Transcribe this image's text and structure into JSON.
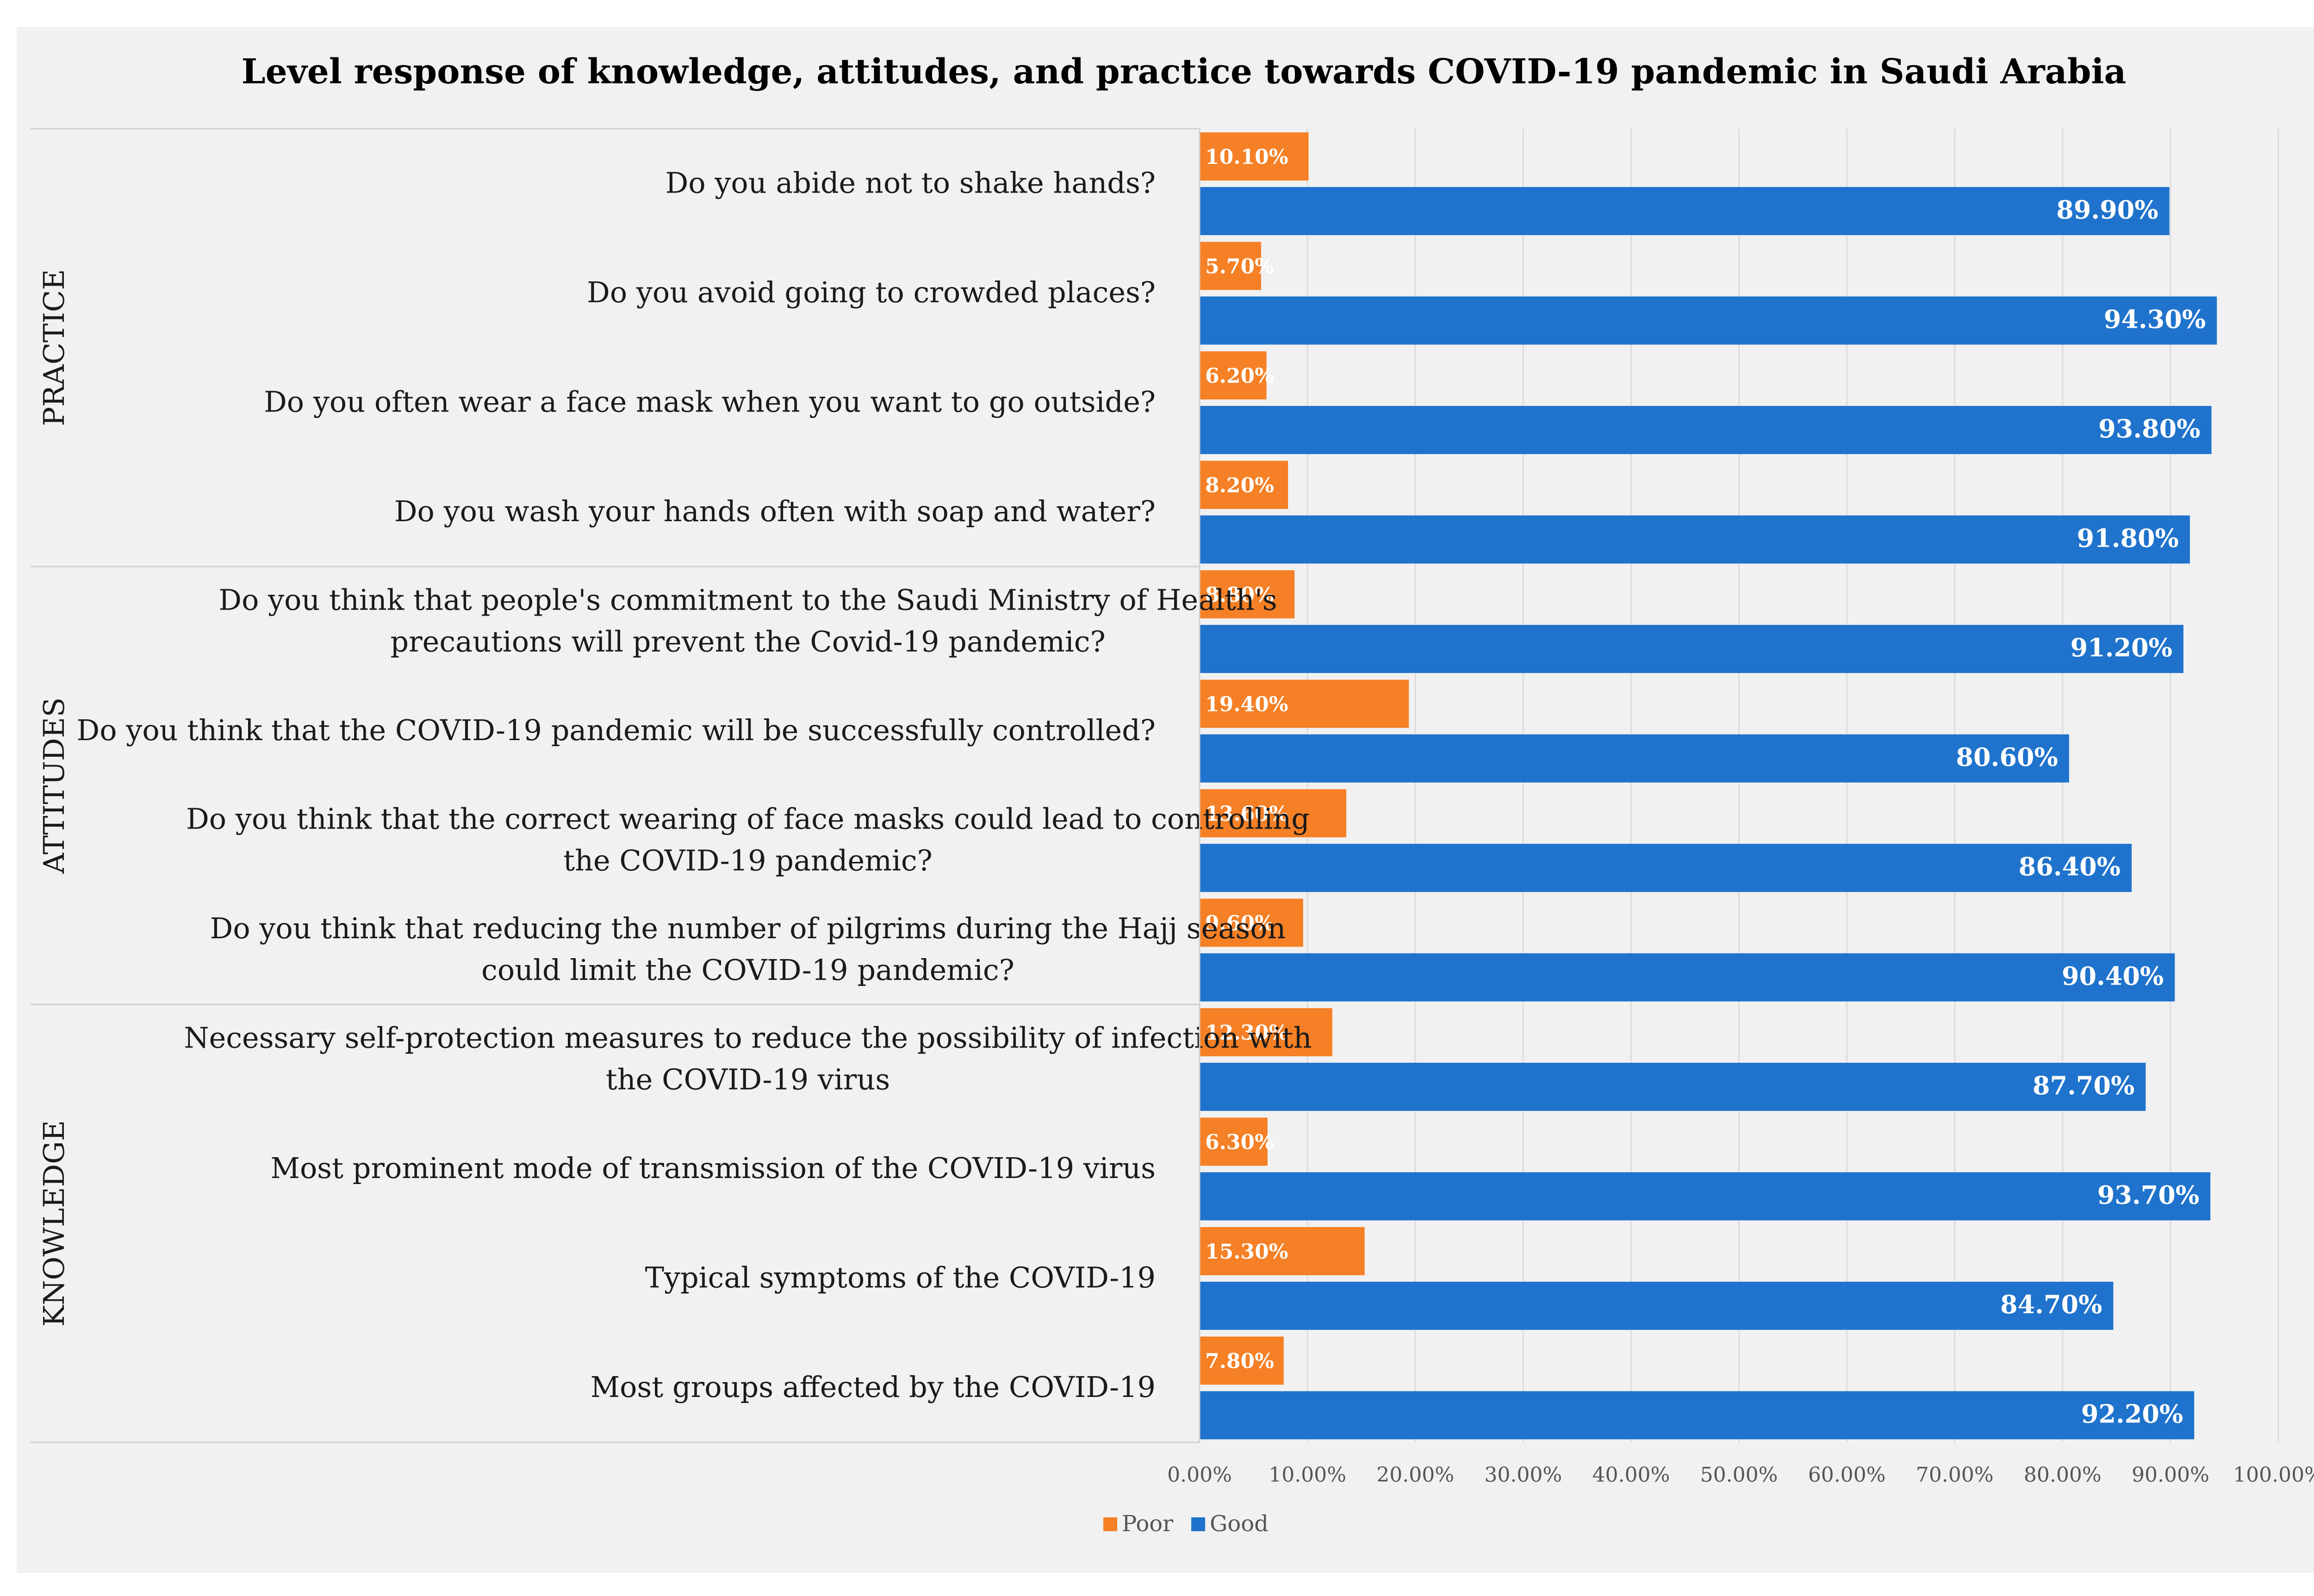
{
  "chart_data": {
    "type": "bar",
    "orientation": "horizontal",
    "title": "Level response of knowledge, attitudes, and practice towards COVID-19 pandemic in Saudi Arabia",
    "xlim": [
      0,
      100
    ],
    "ticks": [
      "0.00%",
      "10.00%",
      "20.00%",
      "30.00%",
      "40.00%",
      "50.00%",
      "60.00%",
      "70.00%",
      "80.00%",
      "90.00%",
      "100.00%"
    ],
    "grid": true,
    "legend_position": "bottom",
    "series": [
      {
        "name": "Poor",
        "color": "#f58025",
        "values": [
          10.1,
          5.7,
          6.2,
          8.2,
          8.8,
          19.4,
          13.6,
          9.6,
          12.3,
          6.3,
          15.3,
          7.8
        ],
        "labels": [
          "10.10%",
          "5.70%",
          "6.20%",
          "8.20%",
          "8.80%",
          "19.40%",
          "13.60%",
          "9.60%",
          "12.30%",
          "6.30%",
          "15.30%",
          "7.80%"
        ]
      },
      {
        "name": "Good",
        "color": "#1f73cc",
        "values": [
          89.9,
          94.3,
          93.8,
          91.8,
          91.2,
          80.6,
          86.4,
          90.4,
          87.7,
          93.7,
          84.7,
          92.2
        ],
        "labels": [
          "89.90%",
          "94.30%",
          "93.80%",
          "91.80%",
          "91.20%",
          "80.60%",
          "86.40%",
          "90.40%",
          "87.70%",
          "93.70%",
          "84.70%",
          "92.20%"
        ]
      }
    ],
    "groups": [
      {
        "name": "PRACTICE",
        "categories": [
          [
            "Do you abide not to shake hands?"
          ],
          [
            "Do you avoid going to crowded places?"
          ],
          [
            "Do you often wear a face mask when you want to go outside?"
          ],
          [
            "Do you wash your hands often with soap and water?"
          ]
        ]
      },
      {
        "name": "ATTITUDES",
        "categories": [
          [
            "Do you think that people's commitment to the Saudi Ministry of Health's",
            "precautions will prevent the Covid-19 pandemic?"
          ],
          [
            "Do you think that the COVID-19 pandemic will be successfully controlled?"
          ],
          [
            "Do you think that the correct wearing of face masks could lead to controlling",
            "the COVID-19 pandemic?"
          ],
          [
            "Do you think that reducing the number of pilgrims during the Hajj season",
            "could limit the COVID-19 pandemic?"
          ]
        ]
      },
      {
        "name": "KNOWLEDGE",
        "categories": [
          [
            "Necessary self-protection measures to reduce the possibility of infection with",
            "the COVID-19 virus"
          ],
          [
            "Most prominent mode of transmission of the COVID-19 virus"
          ],
          [
            "Typical symptoms of the COVID-19"
          ],
          [
            "Most groups affected by the COVID-19"
          ]
        ]
      }
    ]
  }
}
